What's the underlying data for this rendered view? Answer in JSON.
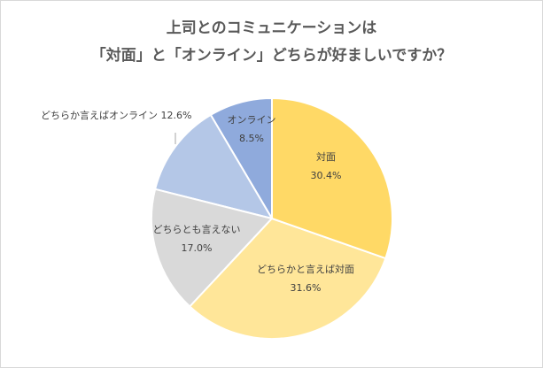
{
  "chart_data": {
    "type": "pie",
    "title_line1": "上司とのコミュニケーションは",
    "title_line2": "「対面」と「オンライン」どちらが好ましいですか？",
    "start": "top",
    "direction": "clockwise",
    "slices": [
      {
        "name": "対面",
        "value": 30.4,
        "label": "30.4%",
        "color": "#FFD966"
      },
      {
        "name": "どちらかと言えば対面",
        "value": 31.6,
        "label": "31.6%",
        "color": "#FFE699"
      },
      {
        "name": "どちらとも言えない",
        "value": 17.0,
        "label": "17.0%",
        "color": "#D9D9D9"
      },
      {
        "name": "どちらか言えばオンライン",
        "value": 12.6,
        "label": "12.6%",
        "color": "#B4C7E7"
      },
      {
        "name": "オンライン",
        "value": 8.5,
        "label": "8.5%",
        "color": "#8FAADC"
      }
    ]
  }
}
